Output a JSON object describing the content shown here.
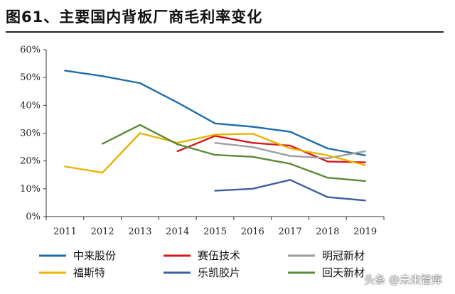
{
  "figure": {
    "title": "图61、主要国内背板厂商毛利率变化"
  },
  "watermark": "头条 @未来智库",
  "colors": {
    "中来股份": "#1f6ea8",
    "赛伍技术": "#d7191c",
    "明冠新材": "#9e9e9e",
    "福斯特": "#e8b400",
    "乐凯胶片": "#3f5fa0",
    "回天新材": "#5b8a3a"
  },
  "chart_data": {
    "type": "line",
    "title": "",
    "xlabel": "",
    "ylabel": "",
    "x": [
      "2011",
      "2012",
      "2013",
      "2014",
      "2015",
      "2016",
      "2017",
      "2018",
      "2019"
    ],
    "ylim": [
      0,
      60
    ],
    "y_ticks": [
      "0%",
      "10%",
      "20%",
      "30%",
      "40%",
      "50%",
      "60%"
    ],
    "y_unit": "%",
    "grid": false,
    "legend_position": "bottom",
    "series": [
      {
        "name": "中来股份",
        "values": [
          52.5,
          50.5,
          48,
          41,
          33.5,
          32.3,
          30.5,
          24.5,
          22
        ]
      },
      {
        "name": "赛伍技术",
        "values": [
          null,
          null,
          null,
          23.5,
          29,
          26.5,
          25.5,
          19.8,
          19.5
        ]
      },
      {
        "name": "明冠新材",
        "values": [
          null,
          null,
          null,
          null,
          26.5,
          25,
          21.8,
          21,
          23.5
        ]
      },
      {
        "name": "福斯特",
        "values": [
          18,
          15.8,
          30,
          26.5,
          29.5,
          29.8,
          24.5,
          22,
          18.5
        ]
      },
      {
        "name": "乐凯胶片",
        "values": [
          null,
          null,
          null,
          null,
          9.3,
          10,
          13.2,
          7,
          5.8
        ]
      },
      {
        "name": "回天新材",
        "values": [
          null,
          26.2,
          33,
          26,
          22.2,
          21.5,
          19,
          14,
          12.8
        ]
      }
    ]
  }
}
